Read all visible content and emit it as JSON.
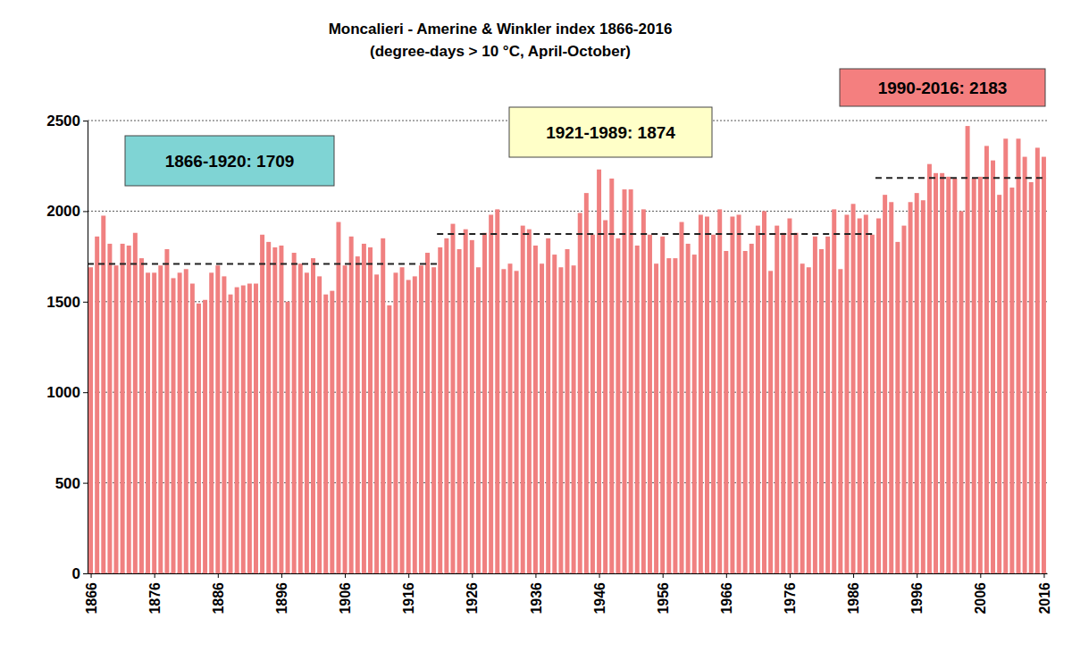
{
  "chart_data": {
    "type": "bar",
    "title": "Moncalieri - Amerine & Winkler index 1866-2016",
    "subtitle": "(degree-days > 10 °C, April-October)",
    "x": [
      1866,
      1867,
      1868,
      1869,
      1870,
      1871,
      1872,
      1873,
      1874,
      1875,
      1876,
      1877,
      1878,
      1879,
      1880,
      1881,
      1882,
      1883,
      1884,
      1885,
      1886,
      1887,
      1888,
      1889,
      1890,
      1891,
      1892,
      1893,
      1894,
      1895,
      1896,
      1897,
      1898,
      1899,
      1900,
      1901,
      1902,
      1903,
      1904,
      1905,
      1906,
      1907,
      1908,
      1909,
      1910,
      1911,
      1912,
      1913,
      1914,
      1915,
      1916,
      1917,
      1918,
      1919,
      1920,
      1921,
      1922,
      1923,
      1924,
      1925,
      1926,
      1927,
      1928,
      1929,
      1930,
      1931,
      1932,
      1933,
      1934,
      1935,
      1936,
      1937,
      1938,
      1939,
      1940,
      1941,
      1942,
      1943,
      1944,
      1945,
      1946,
      1947,
      1948,
      1949,
      1950,
      1951,
      1952,
      1953,
      1954,
      1955,
      1956,
      1957,
      1958,
      1959,
      1960,
      1961,
      1962,
      1963,
      1964,
      1965,
      1966,
      1967,
      1968,
      1969,
      1970,
      1971,
      1972,
      1973,
      1974,
      1975,
      1976,
      1977,
      1978,
      1979,
      1980,
      1981,
      1982,
      1983,
      1984,
      1985,
      1986,
      1987,
      1988,
      1989,
      1990,
      1991,
      1992,
      1993,
      1994,
      1995,
      1996,
      1997,
      1998,
      1999,
      2000,
      2001,
      2002,
      2003,
      2004,
      2005,
      2006,
      2007,
      2008,
      2009,
      2010,
      2011,
      2012,
      2013,
      2014,
      2015,
      2016
    ],
    "values": [
      1690,
      1860,
      1975,
      1820,
      1700,
      1820,
      1810,
      1880,
      1740,
      1660,
      1660,
      1700,
      1790,
      1630,
      1660,
      1680,
      1600,
      1490,
      1510,
      1660,
      1700,
      1640,
      1540,
      1580,
      1590,
      1600,
      1600,
      1870,
      1830,
      1800,
      1810,
      1500,
      1770,
      1710,
      1660,
      1740,
      1640,
      1540,
      1560,
      1940,
      1700,
      1860,
      1750,
      1820,
      1800,
      1650,
      1850,
      1480,
      1660,
      1690,
      1620,
      1640,
      1700,
      1770,
      1690,
      1800,
      1850,
      1930,
      1790,
      1900,
      1840,
      1690,
      1880,
      1980,
      2010,
      1680,
      1710,
      1670,
      1920,
      1900,
      1810,
      1710,
      1850,
      1760,
      1690,
      1790,
      1700,
      1990,
      2100,
      1870,
      2230,
      1950,
      2180,
      1850,
      2120,
      2120,
      1810,
      2010,
      1870,
      1710,
      1860,
      1740,
      1740,
      1940,
      1820,
      1760,
      1980,
      1970,
      1870,
      2010,
      1780,
      1970,
      1980,
      1780,
      1820,
      1920,
      2000,
      1670,
      1920,
      1880,
      1960,
      1880,
      1710,
      1690,
      1860,
      1790,
      1860,
      2010,
      1680,
      1980,
      2040,
      1960,
      1980,
      1870,
      1960,
      2090,
      2050,
      1830,
      1920,
      2050,
      2100,
      2060,
      2260,
      2210,
      2210,
      2190,
      2180,
      2000,
      2470,
      2180,
      2190,
      2360,
      2280,
      2090,
      2400,
      2130,
      2400,
      2300,
      2160,
      2350,
      2300
    ],
    "color": "#f08080",
    "xlim": [
      1865.5,
      2016.5
    ],
    "xticks": [
      1866,
      1876,
      1886,
      1896,
      1906,
      1916,
      1926,
      1936,
      1946,
      1956,
      1966,
      1976,
      1986,
      1996,
      2006,
      2016
    ],
    "ylim": [
      0,
      2500
    ],
    "yticks": [
      0,
      500,
      1000,
      1500,
      2000,
      2500
    ],
    "grid": true,
    "annotations": [
      {
        "text": "1866-1920: 1709",
        "value": 1709,
        "x": [
          1866,
          1920
        ],
        "color": "#7fd4d4"
      },
      {
        "text": "1921-1989: 1874",
        "value": 1874,
        "x": [
          1921,
          1989
        ],
        "color": "#ffffc8"
      },
      {
        "text": "1990-2016: 2183",
        "value": 2183,
        "x": [
          1990,
          2016
        ],
        "color": "#f47f7f"
      }
    ]
  }
}
